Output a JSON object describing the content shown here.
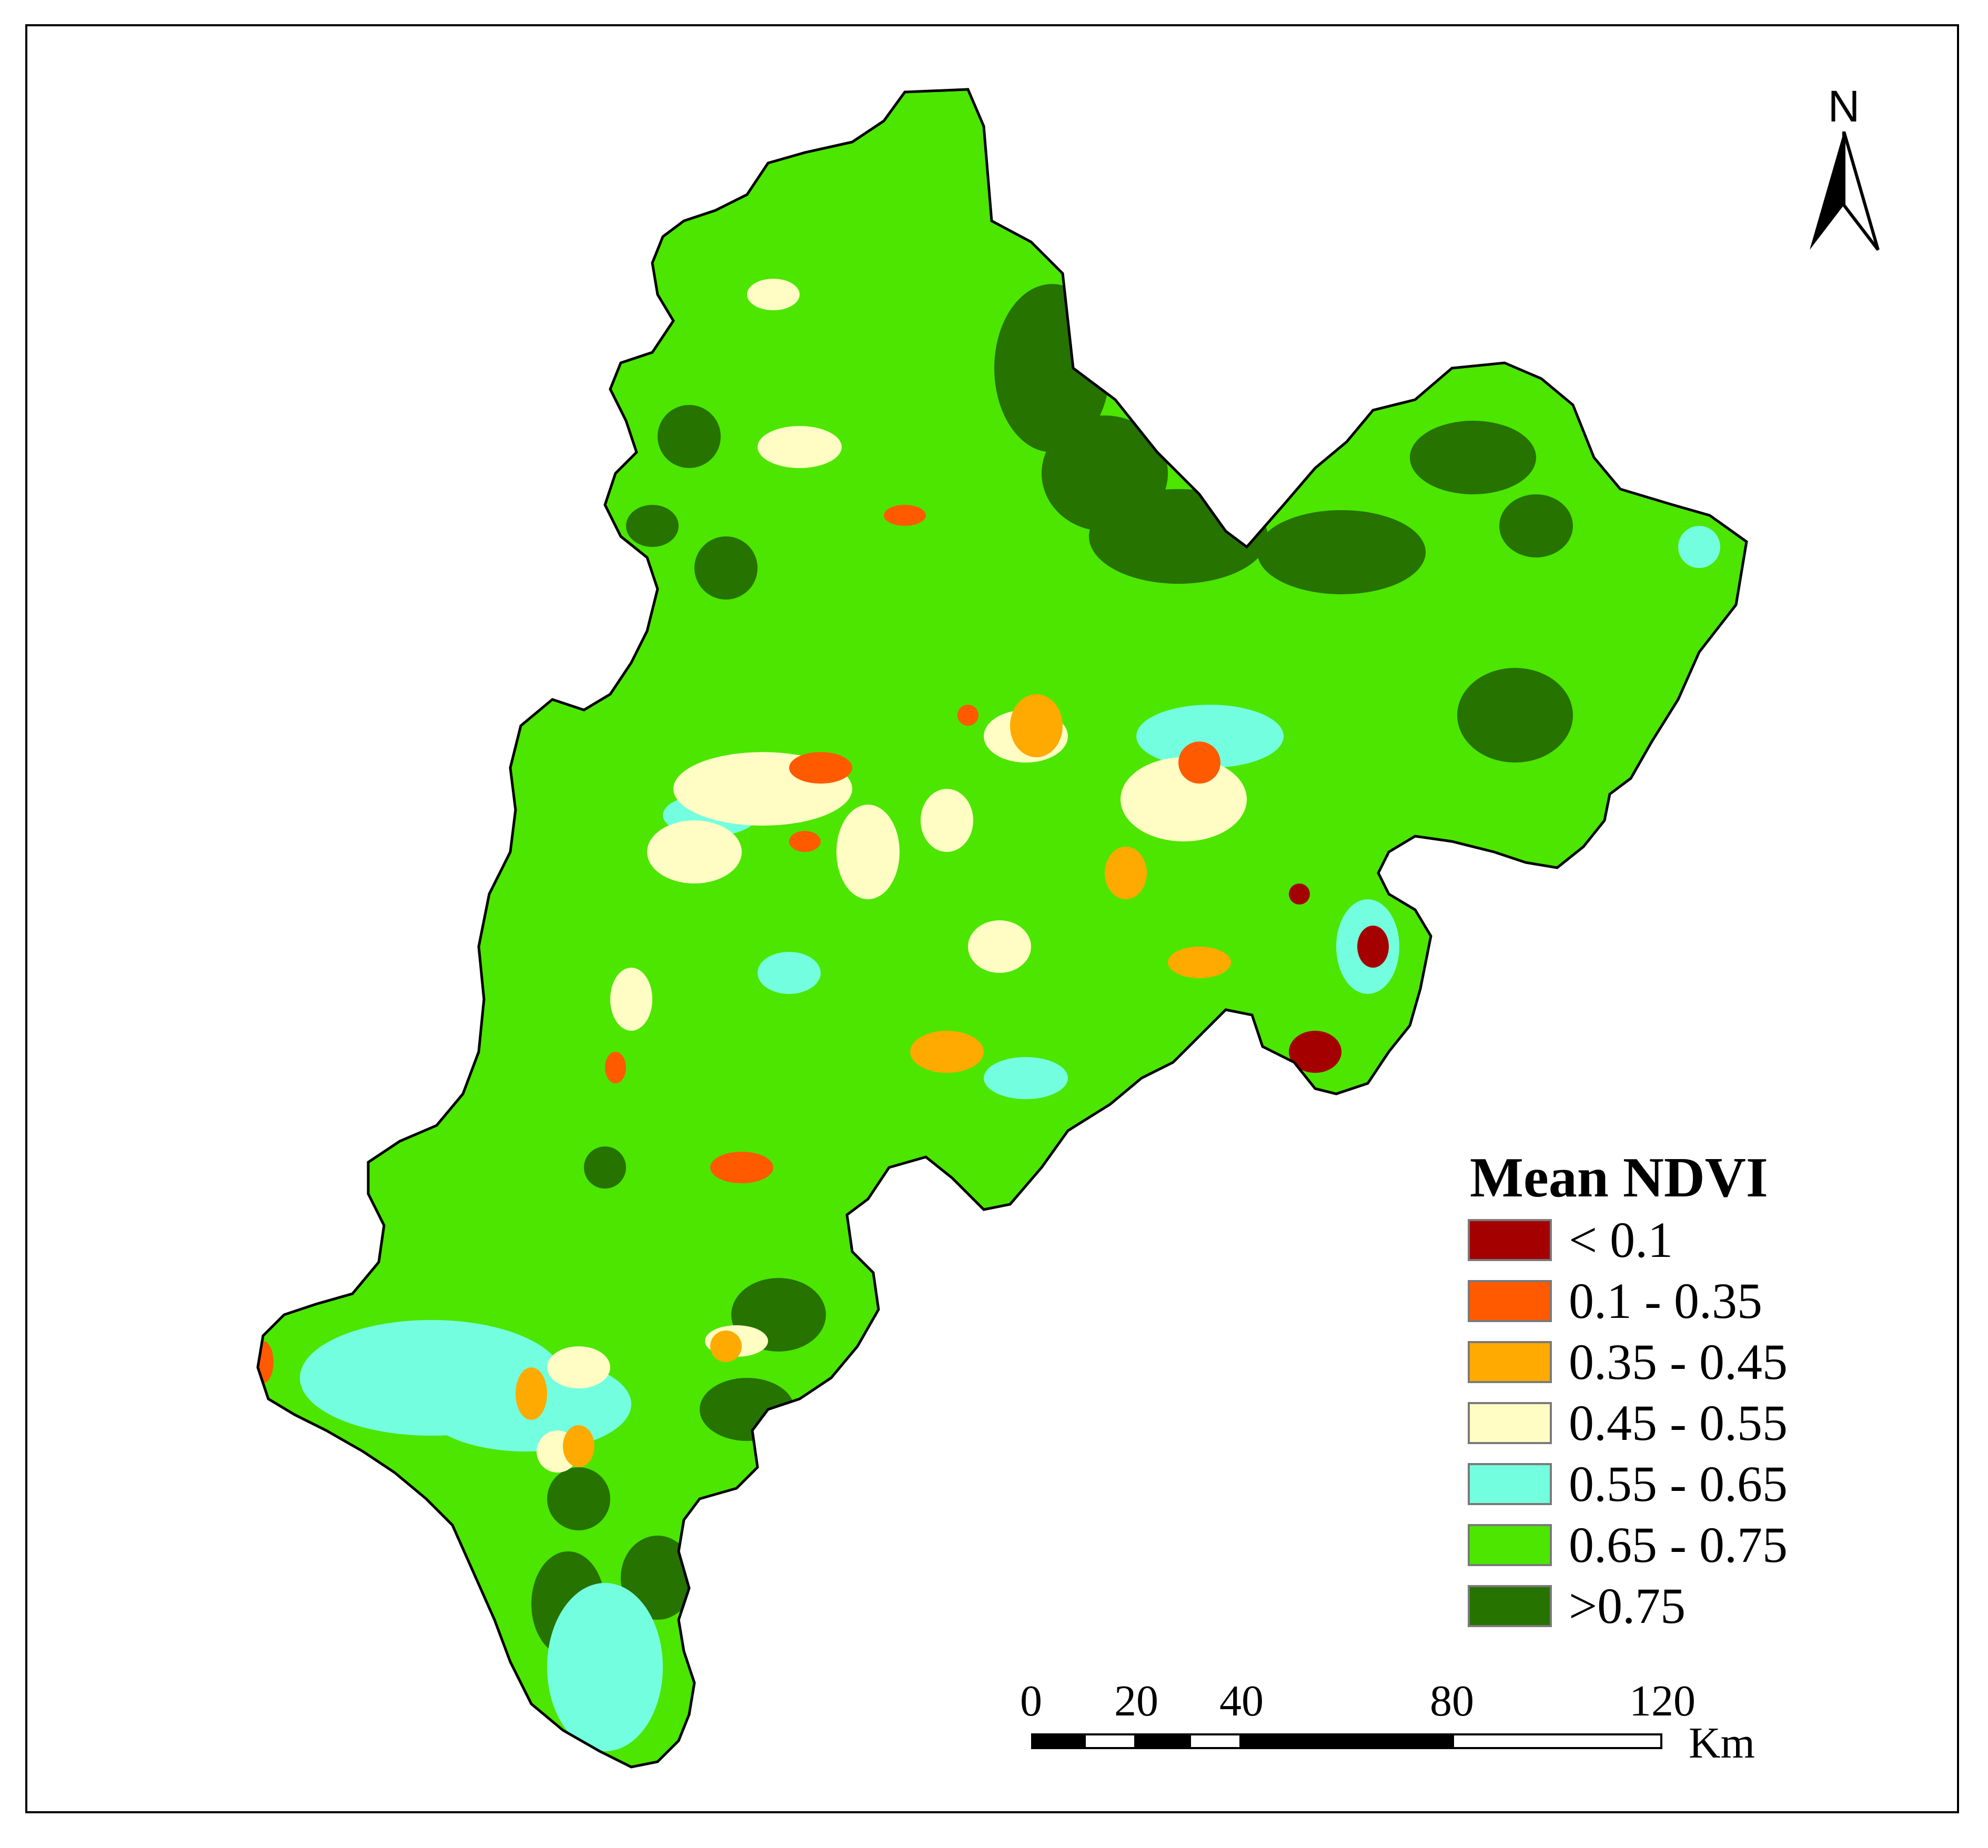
{
  "legend": {
    "title": "Mean NDVI",
    "classes": [
      {
        "label": "< 0.1",
        "color": "#a50000"
      },
      {
        "label": "0.1 - 0.35",
        "color": "#ff5a00"
      },
      {
        "label": "0.35 - 0.45",
        "color": "#ffaa00"
      },
      {
        "label": "0.45 - 0.55",
        "color": "#fffcc4"
      },
      {
        "label": "0.55 - 0.65",
        "color": "#73ffdf"
      },
      {
        "label": "0.65 - 0.75",
        "color": "#4ce600"
      },
      {
        "label": ">0.75",
        "color": "#267300"
      }
    ]
  },
  "north_arrow": {
    "label": "N"
  },
  "scale_bar": {
    "unit": "Km",
    "ticks": [
      "0",
      "20",
      "40",
      "80",
      "120"
    ]
  },
  "colors": {
    "boundary": "#000000",
    "background": "#ffffff"
  }
}
